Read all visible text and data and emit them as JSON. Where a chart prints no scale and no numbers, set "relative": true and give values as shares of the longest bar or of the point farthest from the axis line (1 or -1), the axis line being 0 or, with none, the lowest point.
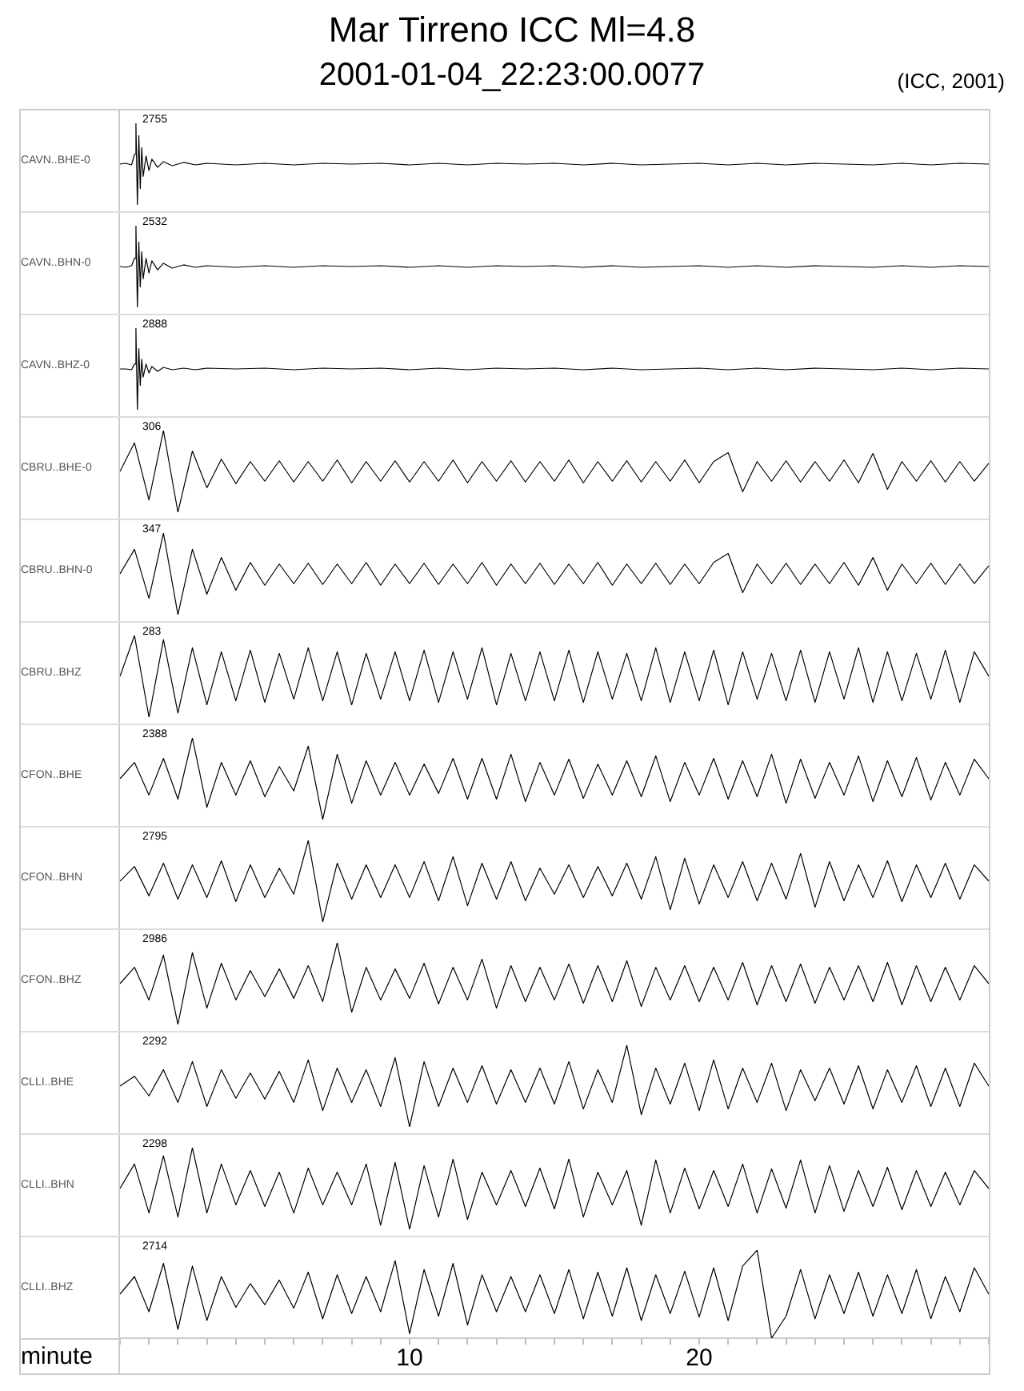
{
  "chart_data": [
    {
      "type": "line",
      "title": "Mar Tirreno ICC Ml=4.8",
      "subtitle": "2001-01-04_22:23:00.0077",
      "ylabel": "CAVN..BHE-0",
      "relative": true,
      "xlim": [
        0,
        30
      ],
      "tick_labels": false,
      "annotations": [
        "2755",
        "(ICC, 2001)"
      ],
      "x": [
        0,
        0.2,
        0.4,
        0.5,
        0.55,
        0.6,
        0.65,
        0.7,
        0.75,
        0.8,
        0.9,
        1.0,
        1.1,
        1.3,
        1.5,
        1.8,
        2.2,
        2.6,
        3,
        4,
        5,
        6,
        7,
        8,
        9,
        10,
        11,
        12,
        13,
        14,
        15,
        16,
        17,
        18,
        19,
        20,
        21,
        22,
        23,
        24,
        25,
        26,
        27,
        28,
        29,
        30
      ],
      "series": [
        {
          "color": "#000000",
          "values": [
            0.5,
            0.51,
            0.49,
            0.62,
            1.0,
            0.0,
            0.85,
            0.2,
            0.7,
            0.35,
            0.6,
            0.42,
            0.56,
            0.46,
            0.53,
            0.48,
            0.52,
            0.49,
            0.51,
            0.49,
            0.51,
            0.49,
            0.51,
            0.5,
            0.51,
            0.49,
            0.51,
            0.49,
            0.51,
            0.5,
            0.51,
            0.49,
            0.51,
            0.49,
            0.5,
            0.51,
            0.49,
            0.51,
            0.49,
            0.51,
            0.5,
            0.49,
            0.51,
            0.49,
            0.51,
            0.5
          ]
        }
      ]
    },
    {
      "type": "line",
      "ylabel": "CAVN..BHN-0",
      "relative": true,
      "xlim": [
        0,
        30
      ],
      "tick_labels": false,
      "annotations": [
        "2532"
      ],
      "x": [
        0,
        0.2,
        0.4,
        0.5,
        0.55,
        0.6,
        0.65,
        0.7,
        0.75,
        0.8,
        0.9,
        1.0,
        1.1,
        1.3,
        1.5,
        1.8,
        2.2,
        2.6,
        3,
        4,
        5,
        6,
        7,
        8,
        9,
        10,
        11,
        12,
        13,
        14,
        15,
        16,
        17,
        18,
        19,
        20,
        21,
        22,
        23,
        24,
        25,
        26,
        27,
        28,
        29,
        30
      ],
      "series": [
        {
          "color": "#000000",
          "values": [
            0.5,
            0.49,
            0.51,
            0.6,
            1.0,
            0.0,
            0.8,
            0.25,
            0.68,
            0.35,
            0.6,
            0.42,
            0.57,
            0.46,
            0.54,
            0.48,
            0.52,
            0.49,
            0.51,
            0.49,
            0.51,
            0.49,
            0.51,
            0.5,
            0.51,
            0.49,
            0.51,
            0.49,
            0.51,
            0.5,
            0.51,
            0.49,
            0.51,
            0.49,
            0.5,
            0.51,
            0.49,
            0.51,
            0.49,
            0.51,
            0.5,
            0.49,
            0.51,
            0.49,
            0.51,
            0.5
          ]
        }
      ]
    },
    {
      "type": "line",
      "ylabel": "CAVN..BHZ-0",
      "relative": true,
      "xlim": [
        0,
        30
      ],
      "tick_labels": false,
      "annotations": [
        "2888"
      ],
      "x": [
        0,
        0.2,
        0.4,
        0.5,
        0.55,
        0.6,
        0.65,
        0.7,
        0.75,
        0.8,
        0.9,
        1.0,
        1.1,
        1.3,
        1.5,
        1.8,
        2.2,
        2.6,
        3,
        4,
        5,
        6,
        7,
        8,
        9,
        10,
        11,
        12,
        13,
        14,
        15,
        16,
        17,
        18,
        19,
        20,
        21,
        22,
        23,
        24,
        25,
        26,
        27,
        28,
        29,
        30
      ],
      "series": [
        {
          "color": "#000000",
          "values": [
            0.5,
            0.5,
            0.49,
            0.56,
            1.0,
            0.0,
            0.75,
            0.3,
            0.62,
            0.4,
            0.56,
            0.45,
            0.53,
            0.47,
            0.52,
            0.49,
            0.51,
            0.49,
            0.51,
            0.5,
            0.51,
            0.49,
            0.51,
            0.5,
            0.51,
            0.49,
            0.51,
            0.49,
            0.51,
            0.5,
            0.51,
            0.49,
            0.51,
            0.49,
            0.5,
            0.51,
            0.49,
            0.51,
            0.49,
            0.51,
            0.5,
            0.49,
            0.51,
            0.49,
            0.51,
            0.5
          ]
        }
      ]
    },
    {
      "type": "line",
      "ylabel": "CBRU..BHE-0",
      "relative": true,
      "xlim": [
        0,
        30
      ],
      "tick_labels": false,
      "annotations": [
        "306"
      ],
      "x": [
        0,
        0.5,
        1,
        1.5,
        2,
        2.5,
        3,
        3.5,
        4,
        4.5,
        5,
        5.5,
        6,
        6.5,
        7,
        7.5,
        8,
        8.5,
        9,
        9.5,
        10,
        10.5,
        11,
        11.5,
        12,
        12.5,
        13,
        13.5,
        14,
        14.5,
        15,
        15.5,
        16,
        16.5,
        17,
        17.5,
        18,
        18.5,
        19,
        19.5,
        20,
        20.5,
        21,
        21.5,
        22,
        22.5,
        23,
        23.5,
        24,
        24.5,
        25,
        25.5,
        26,
        26.5,
        27,
        27.5,
        28,
        28.5,
        29,
        29.5,
        30
      ],
      "series": [
        {
          "color": "#000000",
          "values": [
            0.5,
            0.85,
            0.15,
            1.0,
            0.0,
            0.75,
            0.3,
            0.65,
            0.35,
            0.62,
            0.38,
            0.63,
            0.37,
            0.62,
            0.38,
            0.64,
            0.36,
            0.62,
            0.38,
            0.63,
            0.37,
            0.62,
            0.38,
            0.64,
            0.36,
            0.62,
            0.38,
            0.63,
            0.37,
            0.62,
            0.38,
            0.64,
            0.36,
            0.62,
            0.38,
            0.63,
            0.37,
            0.62,
            0.38,
            0.64,
            0.36,
            0.62,
            0.73,
            0.25,
            0.62,
            0.38,
            0.63,
            0.37,
            0.62,
            0.38,
            0.64,
            0.36,
            0.72,
            0.28,
            0.62,
            0.38,
            0.63,
            0.37,
            0.62,
            0.38,
            0.6
          ]
        }
      ]
    },
    {
      "type": "line",
      "ylabel": "CBRU..BHN-0",
      "relative": true,
      "xlim": [
        0,
        30
      ],
      "tick_labels": false,
      "annotations": [
        "347"
      ],
      "x": [
        0,
        0.5,
        1,
        1.5,
        2,
        2.5,
        3,
        3.5,
        4,
        4.5,
        5,
        5.5,
        6,
        6.5,
        7,
        7.5,
        8,
        8.5,
        9,
        9.5,
        10,
        10.5,
        11,
        11.5,
        12,
        12.5,
        13,
        13.5,
        14,
        14.5,
        15,
        15.5,
        16,
        16.5,
        17,
        17.5,
        18,
        18.5,
        19,
        19.5,
        20,
        20.5,
        21,
        21.5,
        22,
        22.5,
        23,
        23.5,
        24,
        24.5,
        25,
        25.5,
        26,
        26.5,
        27,
        27.5,
        28,
        28.5,
        29,
        29.5,
        30
      ],
      "series": [
        {
          "color": "#000000",
          "values": [
            0.5,
            0.8,
            0.2,
            1.0,
            0.0,
            0.8,
            0.25,
            0.7,
            0.3,
            0.64,
            0.36,
            0.62,
            0.38,
            0.63,
            0.37,
            0.62,
            0.38,
            0.64,
            0.36,
            0.62,
            0.38,
            0.63,
            0.37,
            0.62,
            0.38,
            0.64,
            0.36,
            0.62,
            0.38,
            0.63,
            0.37,
            0.62,
            0.38,
            0.64,
            0.36,
            0.62,
            0.38,
            0.63,
            0.37,
            0.62,
            0.38,
            0.64,
            0.75,
            0.27,
            0.62,
            0.38,
            0.63,
            0.37,
            0.62,
            0.38,
            0.64,
            0.36,
            0.7,
            0.3,
            0.62,
            0.38,
            0.63,
            0.37,
            0.62,
            0.38,
            0.6
          ]
        }
      ]
    },
    {
      "type": "line",
      "ylabel": "CBRU..BHZ",
      "relative": true,
      "xlim": [
        0,
        30
      ],
      "tick_labels": false,
      "annotations": [
        "283"
      ],
      "x": [
        0,
        0.5,
        1,
        1.5,
        2,
        2.5,
        3,
        3.5,
        4,
        4.5,
        5,
        5.5,
        6,
        6.5,
        7,
        7.5,
        8,
        8.5,
        9,
        9.5,
        10,
        10.5,
        11,
        11.5,
        12,
        12.5,
        13,
        13.5,
        14,
        14.5,
        15,
        15.5,
        16,
        16.5,
        17,
        17.5,
        18,
        18.5,
        19,
        19.5,
        20,
        20.5,
        21,
        21.5,
        22,
        22.5,
        23,
        23.5,
        24,
        24.5,
        25,
        25.5,
        26,
        26.5,
        27,
        27.5,
        28,
        28.5,
        29,
        29.5,
        30
      ],
      "series": [
        {
          "color": "#000000",
          "values": [
            0.5,
            1.0,
            0.0,
            0.95,
            0.05,
            0.85,
            0.15,
            0.8,
            0.2,
            0.82,
            0.18,
            0.78,
            0.22,
            0.85,
            0.2,
            0.8,
            0.15,
            0.78,
            0.22,
            0.8,
            0.2,
            0.82,
            0.18,
            0.8,
            0.22,
            0.85,
            0.15,
            0.78,
            0.2,
            0.8,
            0.2,
            0.82,
            0.18,
            0.8,
            0.22,
            0.78,
            0.2,
            0.85,
            0.18,
            0.8,
            0.2,
            0.82,
            0.15,
            0.8,
            0.22,
            0.78,
            0.2,
            0.82,
            0.18,
            0.8,
            0.22,
            0.85,
            0.18,
            0.8,
            0.2,
            0.78,
            0.22,
            0.82,
            0.18,
            0.8,
            0.5
          ]
        }
      ]
    },
    {
      "type": "line",
      "ylabel": "CFON..BHE",
      "relative": true,
      "xlim": [
        0,
        30
      ],
      "tick_labels": false,
      "annotations": [
        "2388"
      ],
      "x": [
        0,
        0.5,
        1,
        1.5,
        2,
        2.5,
        3,
        3.5,
        4,
        4.5,
        5,
        5.5,
        6,
        6.5,
        7,
        7.5,
        8,
        8.5,
        9,
        9.5,
        10,
        10.5,
        11,
        11.5,
        12,
        12.5,
        13,
        13.5,
        14,
        14.5,
        15,
        15.5,
        16,
        16.5,
        17,
        17.5,
        18,
        18.5,
        19,
        19.5,
        20,
        20.5,
        21,
        21.5,
        22,
        22.5,
        23,
        23.5,
        24,
        24.5,
        25,
        25.5,
        26,
        26.5,
        27,
        27.5,
        28,
        28.5,
        29,
        29.5,
        30
      ],
      "series": [
        {
          "color": "#000000",
          "values": [
            0.5,
            0.7,
            0.3,
            0.75,
            0.25,
            1.0,
            0.15,
            0.7,
            0.3,
            0.72,
            0.28,
            0.65,
            0.35,
            0.9,
            0.0,
            0.8,
            0.2,
            0.72,
            0.3,
            0.7,
            0.3,
            0.68,
            0.32,
            0.75,
            0.25,
            0.75,
            0.25,
            0.8,
            0.22,
            0.7,
            0.3,
            0.74,
            0.26,
            0.68,
            0.3,
            0.72,
            0.28,
            0.78,
            0.22,
            0.7,
            0.3,
            0.75,
            0.25,
            0.72,
            0.28,
            0.8,
            0.2,
            0.74,
            0.26,
            0.7,
            0.3,
            0.78,
            0.22,
            0.72,
            0.28,
            0.76,
            0.24,
            0.7,
            0.3,
            0.74,
            0.5
          ]
        }
      ]
    },
    {
      "type": "line",
      "ylabel": "CFON..BHN",
      "relative": true,
      "xlim": [
        0,
        30
      ],
      "tick_labels": false,
      "annotations": [
        "2795"
      ],
      "x": [
        0,
        0.5,
        1,
        1.5,
        2,
        2.5,
        3,
        3.5,
        4,
        4.5,
        5,
        5.5,
        6,
        6.5,
        7,
        7.5,
        8,
        8.5,
        9,
        9.5,
        10,
        10.5,
        11,
        11.5,
        12,
        12.5,
        13,
        13.5,
        14,
        14.5,
        15,
        15.5,
        16,
        16.5,
        17,
        17.5,
        18,
        18.5,
        19,
        19.5,
        20,
        20.5,
        21,
        21.5,
        22,
        22.5,
        23,
        23.5,
        24,
        24.5,
        25,
        25.5,
        26,
        26.5,
        27,
        27.5,
        28,
        28.5,
        29,
        29.5,
        30
      ],
      "series": [
        {
          "color": "#000000",
          "values": [
            0.5,
            0.68,
            0.32,
            0.72,
            0.28,
            0.7,
            0.3,
            0.75,
            0.25,
            0.7,
            0.3,
            0.66,
            0.34,
            1.0,
            0.0,
            0.72,
            0.28,
            0.7,
            0.3,
            0.7,
            0.3,
            0.74,
            0.26,
            0.8,
            0.2,
            0.72,
            0.28,
            0.74,
            0.26,
            0.66,
            0.34,
            0.7,
            0.3,
            0.68,
            0.32,
            0.72,
            0.28,
            0.8,
            0.15,
            0.78,
            0.22,
            0.7,
            0.3,
            0.74,
            0.26,
            0.72,
            0.28,
            0.84,
            0.18,
            0.74,
            0.26,
            0.7,
            0.3,
            0.75,
            0.25,
            0.7,
            0.3,
            0.72,
            0.28,
            0.7,
            0.5
          ]
        }
      ]
    },
    {
      "type": "line",
      "ylabel": "CFON..BHZ",
      "relative": true,
      "xlim": [
        0,
        30
      ],
      "tick_labels": false,
      "annotations": [
        "2986"
      ],
      "x": [
        0,
        0.5,
        1,
        1.5,
        2,
        2.5,
        3,
        3.5,
        4,
        4.5,
        5,
        5.5,
        6,
        6.5,
        7,
        7.5,
        8,
        8.5,
        9,
        9.5,
        10,
        10.5,
        11,
        11.5,
        12,
        12.5,
        13,
        13.5,
        14,
        14.5,
        15,
        15.5,
        16,
        16.5,
        17,
        17.5,
        18,
        18.5,
        19,
        19.5,
        20,
        20.5,
        21,
        21.5,
        22,
        22.5,
        23,
        23.5,
        24,
        24.5,
        25,
        25.5,
        26,
        26.5,
        27,
        27.5,
        28,
        28.5,
        29,
        29.5,
        30
      ],
      "series": [
        {
          "color": "#000000",
          "values": [
            0.5,
            0.7,
            0.3,
            0.85,
            0.0,
            0.88,
            0.2,
            0.75,
            0.3,
            0.66,
            0.34,
            0.68,
            0.32,
            0.72,
            0.28,
            1.0,
            0.15,
            0.7,
            0.3,
            0.68,
            0.32,
            0.75,
            0.25,
            0.7,
            0.3,
            0.8,
            0.2,
            0.72,
            0.28,
            0.7,
            0.3,
            0.74,
            0.26,
            0.72,
            0.28,
            0.78,
            0.22,
            0.7,
            0.3,
            0.72,
            0.28,
            0.7,
            0.3,
            0.76,
            0.24,
            0.72,
            0.28,
            0.74,
            0.26,
            0.7,
            0.3,
            0.72,
            0.28,
            0.76,
            0.24,
            0.72,
            0.28,
            0.7,
            0.3,
            0.72,
            0.5
          ]
        }
      ]
    },
    {
      "type": "line",
      "ylabel": "CLLI..BHE",
      "relative": true,
      "xlim": [
        0,
        30
      ],
      "tick_labels": false,
      "annotations": [
        "2292"
      ],
      "x": [
        0,
        0.5,
        1,
        1.5,
        2,
        2.5,
        3,
        3.5,
        4,
        4.5,
        5,
        5.5,
        6,
        6.5,
        7,
        7.5,
        8,
        8.5,
        9,
        9.5,
        10,
        10.5,
        11,
        11.5,
        12,
        12.5,
        13,
        13.5,
        14,
        14.5,
        15,
        15.5,
        16,
        16.5,
        17,
        17.5,
        18,
        18.5,
        19,
        19.5,
        20,
        20.5,
        21,
        21.5,
        22,
        22.5,
        23,
        23.5,
        24,
        24.5,
        25,
        25.5,
        26,
        26.5,
        27,
        27.5,
        28,
        28.5,
        29,
        29.5,
        30
      ],
      "series": [
        {
          "color": "#000000",
          "values": [
            0.5,
            0.62,
            0.38,
            0.7,
            0.3,
            0.8,
            0.25,
            0.7,
            0.35,
            0.66,
            0.34,
            0.68,
            0.3,
            0.82,
            0.2,
            0.72,
            0.3,
            0.7,
            0.25,
            0.85,
            0.0,
            0.8,
            0.25,
            0.72,
            0.3,
            0.75,
            0.28,
            0.7,
            0.3,
            0.72,
            0.28,
            0.8,
            0.22,
            0.7,
            0.3,
            1.0,
            0.15,
            0.72,
            0.28,
            0.78,
            0.2,
            0.82,
            0.22,
            0.72,
            0.3,
            0.78,
            0.2,
            0.7,
            0.32,
            0.72,
            0.28,
            0.75,
            0.22,
            0.7,
            0.3,
            0.75,
            0.25,
            0.72,
            0.25,
            0.78,
            0.5
          ]
        }
      ]
    },
    {
      "type": "line",
      "ylabel": "CLLI..BHN",
      "relative": true,
      "xlim": [
        0,
        30
      ],
      "tick_labels": false,
      "annotations": [
        "2298"
      ],
      "x": [
        0,
        0.5,
        1,
        1.5,
        2,
        2.5,
        3,
        3.5,
        4,
        4.5,
        5,
        5.5,
        6,
        6.5,
        7,
        7.5,
        8,
        8.5,
        9,
        9.5,
        10,
        10.5,
        11,
        11.5,
        12,
        12.5,
        13,
        13.5,
        14,
        14.5,
        15,
        15.5,
        16,
        16.5,
        17,
        17.5,
        18,
        18.5,
        19,
        19.5,
        20,
        20.5,
        21,
        21.5,
        22,
        22.5,
        23,
        23.5,
        24,
        24.5,
        25,
        25.5,
        26,
        26.5,
        27,
        27.5,
        28,
        28.5,
        29,
        29.5,
        30
      ],
      "series": [
        {
          "color": "#000000",
          "values": [
            0.5,
            0.8,
            0.2,
            0.9,
            0.15,
            1.0,
            0.2,
            0.8,
            0.3,
            0.72,
            0.28,
            0.7,
            0.2,
            0.75,
            0.3,
            0.7,
            0.3,
            0.8,
            0.05,
            0.82,
            0.0,
            0.78,
            0.15,
            0.86,
            0.12,
            0.7,
            0.3,
            0.72,
            0.28,
            0.75,
            0.25,
            0.86,
            0.15,
            0.7,
            0.3,
            0.72,
            0.05,
            0.85,
            0.2,
            0.75,
            0.25,
            0.72,
            0.28,
            0.8,
            0.2,
            0.74,
            0.26,
            0.85,
            0.2,
            0.78,
            0.22,
            0.72,
            0.28,
            0.76,
            0.24,
            0.72,
            0.28,
            0.7,
            0.3,
            0.72,
            0.5
          ]
        }
      ]
    },
    {
      "type": "line",
      "ylabel": "CLLI..BHZ",
      "xlabel": "minute",
      "relative": true,
      "xlim": [
        0,
        30
      ],
      "tick_labels": "x",
      "annotations": [
        "2714"
      ],
      "xticks": [
        {
          "value": 0,
          "label": null
        },
        {
          "value": 1,
          "label": null
        },
        {
          "value": 2,
          "label": null
        },
        {
          "value": 3,
          "label": null
        },
        {
          "value": 4,
          "label": null
        },
        {
          "value": 5,
          "label": null
        },
        {
          "value": 6,
          "label": null
        },
        {
          "value": 7,
          "label": null
        },
        {
          "value": 8,
          "label": null
        },
        {
          "value": 9,
          "label": null
        },
        10,
        {
          "value": 11,
          "label": null
        },
        {
          "value": 12,
          "label": null
        },
        {
          "value": 13,
          "label": null
        },
        {
          "value": 14,
          "label": null
        },
        {
          "value": 15,
          "label": null
        },
        {
          "value": 16,
          "label": null
        },
        {
          "value": 17,
          "label": null
        },
        {
          "value": 18,
          "label": null
        },
        {
          "value": 19,
          "label": null
        },
        20,
        {
          "value": 21,
          "label": null
        },
        {
          "value": 22,
          "label": null
        },
        {
          "value": 23,
          "label": null
        },
        {
          "value": 24,
          "label": null
        },
        {
          "value": 25,
          "label": null
        },
        {
          "value": 26,
          "label": null
        },
        {
          "value": 27,
          "label": null
        },
        {
          "value": 28,
          "label": null
        },
        {
          "value": 29,
          "label": null
        },
        {
          "value": 30,
          "label": null
        }
      ],
      "x": [
        0,
        0.5,
        1,
        1.5,
        2,
        2.5,
        3,
        3.5,
        4,
        4.5,
        5,
        5.5,
        6,
        6.5,
        7,
        7.5,
        8,
        8.5,
        9,
        9.5,
        10,
        10.5,
        11,
        11.5,
        12,
        12.5,
        13,
        13.5,
        14,
        14.5,
        15,
        15.5,
        16,
        16.5,
        17,
        17.5,
        18,
        18.5,
        19,
        19.5,
        20,
        20.5,
        21,
        21.5,
        22,
        22.5,
        23,
        23.5,
        24,
        24.5,
        25,
        25.5,
        26,
        26.5,
        27,
        27.5,
        28,
        28.5,
        29,
        29.5,
        30
      ],
      "series": [
        {
          "color": "#000000",
          "values": [
            0.5,
            0.7,
            0.3,
            0.85,
            0.1,
            0.82,
            0.2,
            0.7,
            0.35,
            0.62,
            0.38,
            0.66,
            0.34,
            0.75,
            0.22,
            0.72,
            0.28,
            0.7,
            0.3,
            0.88,
            0.05,
            0.78,
            0.25,
            0.85,
            0.15,
            0.72,
            0.3,
            0.7,
            0.3,
            0.72,
            0.28,
            0.78,
            0.22,
            0.75,
            0.25,
            0.8,
            0.2,
            0.72,
            0.28,
            0.76,
            0.24,
            0.8,
            0.2,
            0.82,
            1.0,
            0.0,
            0.25,
            0.78,
            0.22,
            0.72,
            0.28,
            0.75,
            0.25,
            0.72,
            0.28,
            0.78,
            0.22,
            0.7,
            0.3,
            0.8,
            0.5
          ]
        }
      ]
    }
  ]
}
